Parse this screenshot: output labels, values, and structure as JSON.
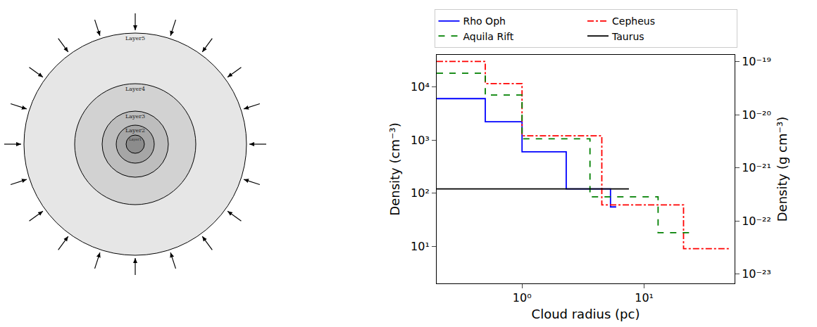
{
  "diagram": {
    "layers": [
      "Layer1",
      "Layer2",
      "Layer3",
      "Layer4",
      "Layer5"
    ]
  },
  "chart_data": {
    "type": "step",
    "x_label": "Cloud radius (pc)",
    "y_label": "Density (cm⁻³)",
    "y2_label": "Density (g cm⁻³)",
    "log": true,
    "grid": false,
    "legend": "top",
    "xlim": [
      0.2,
      55
    ],
    "xticks": [
      {
        "value": 1,
        "label": "10⁰"
      },
      {
        "value": 10,
        "label": "10¹"
      }
    ],
    "ylim": [
      2,
      40000
    ],
    "yticks": [
      {
        "value": 10,
        "label": "10¹"
      },
      {
        "value": 100,
        "label": "10²"
      },
      {
        "value": 1000,
        "label": "10³"
      },
      {
        "value": 10000,
        "label": "10⁴"
      }
    ],
    "y2lim": [
      6.67e-24,
      1.333e-19
    ],
    "y2ticks": [
      {
        "value": 1e-23,
        "label": "10⁻²³"
      },
      {
        "value": 1e-22,
        "label": "10⁻²²"
      },
      {
        "value": 1e-21,
        "label": "10⁻²¹"
      },
      {
        "value": 1e-20,
        "label": "10⁻²⁰"
      },
      {
        "value": 1e-19,
        "label": "10⁻¹⁹"
      }
    ],
    "series": [
      {
        "name": "Rho Oph",
        "color": "#0000ff",
        "line_style": "solid",
        "edges": [
          0.2,
          0.5,
          1,
          2.3,
          5.3,
          5.9
        ],
        "values": [
          6000,
          2200,
          600,
          120,
          55
        ]
      },
      {
        "name": "Cepheus",
        "color": "#ff0000",
        "line_style": "dashdot",
        "edges": [
          0.2,
          0.5,
          1,
          4.5,
          21,
          50
        ],
        "values": [
          30000,
          11500,
          1200,
          60,
          9
        ]
      },
      {
        "name": "Aquila Rift",
        "color": "#008000",
        "line_style": "dashed",
        "edges": [
          0.2,
          0.5,
          1,
          3.6,
          13,
          24
        ],
        "values": [
          18000,
          7000,
          1050,
          85,
          18
        ]
      },
      {
        "name": "Taurus",
        "color": "#000000",
        "line_style": "solid",
        "edges": [
          0.2,
          7.5
        ],
        "values": [
          120
        ]
      }
    ]
  }
}
